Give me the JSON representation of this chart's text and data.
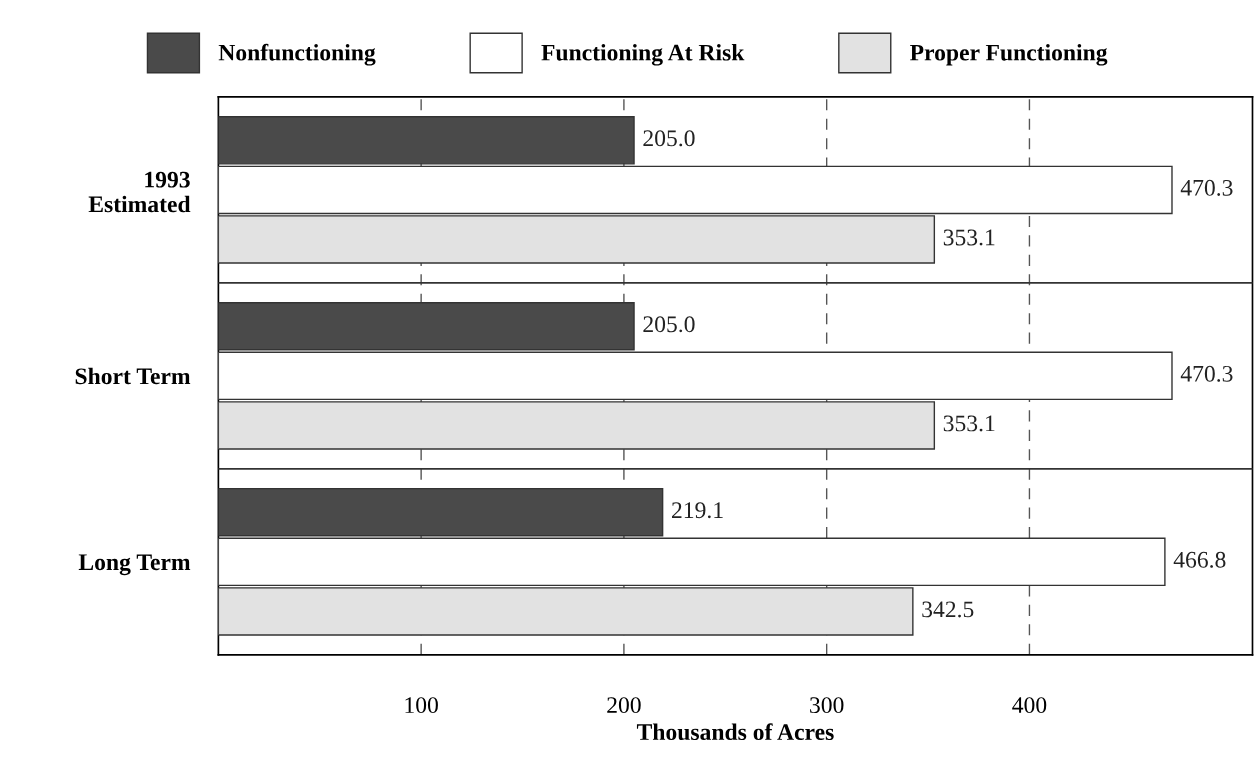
{
  "chart_data": {
    "type": "bar",
    "orientation": "horizontal",
    "xlabel": "Thousands of Acres",
    "categories": [
      "1993\nEstimated",
      "Short Term",
      "Long Term"
    ],
    "series": [
      {
        "name": "Nonfunctioning",
        "color": "#4a4a4a",
        "values": [
          205.0,
          205.0,
          219.1
        ],
        "value_labels": [
          "205.0",
          "205.0",
          "219.1"
        ]
      },
      {
        "name": "Functioning At Risk",
        "color": "#ffffff",
        "values": [
          470.3,
          470.3,
          466.8
        ],
        "value_labels": [
          "470.3",
          "470.3",
          "466.8"
        ]
      },
      {
        "name": "Proper Functioning",
        "color": "#e2e2e2",
        "values": [
          353.1,
          353.1,
          342.5
        ],
        "value_labels": [
          "353.1",
          "353.1",
          "342.5"
        ]
      }
    ],
    "xlim": [
      0,
      510
    ],
    "xticks": [
      100,
      200,
      300,
      400
    ],
    "grid": "x",
    "legend": "top"
  }
}
